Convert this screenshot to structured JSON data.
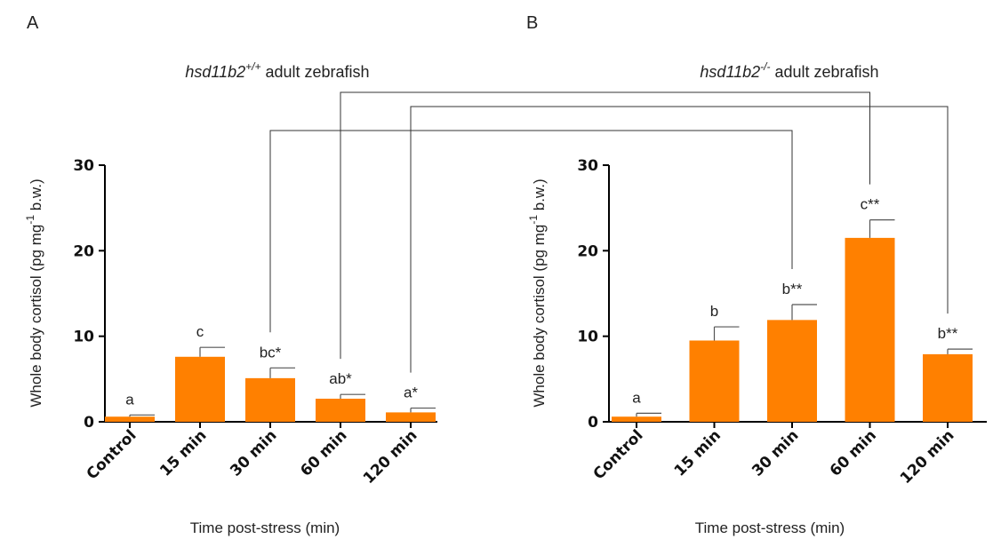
{
  "chart_data": [
    {
      "type": "bar",
      "panel_label": "A",
      "title_gene": "hsd11b2",
      "title_superscript": "+/+",
      "title_rest": " adult zebrafish",
      "xlabel": "Time post-stress (min)",
      "ylabel_part1": "Whole body cortisol (pg mg",
      "ylabel_sup": "-1",
      "ylabel_part2": " b.w.)",
      "ylim": [
        0,
        30
      ],
      "yticks": [
        0,
        10,
        20,
        30
      ],
      "categories": [
        "Control",
        "15 min",
        "30 min",
        "60 min",
        "120 min"
      ],
      "values": [
        0.6,
        7.6,
        5.1,
        2.7,
        1.1
      ],
      "errors": [
        0.2,
        1.1,
        1.2,
        0.5,
        0.5
      ],
      "significance": [
        "a",
        "c",
        "bc*",
        "ab*",
        "a*"
      ],
      "bar_color": "#ff8000"
    },
    {
      "type": "bar",
      "panel_label": "B",
      "title_gene": "hsd11b2",
      "title_superscript": "-/-",
      "title_rest": " adult zebrafish",
      "xlabel": "Time post-stress (min)",
      "ylabel_part1": "Whole body cortisol (pg mg",
      "ylabel_sup": "-1",
      "ylabel_part2": " b.w.)",
      "ylim": [
        0,
        30
      ],
      "yticks": [
        0,
        10,
        20,
        30
      ],
      "categories": [
        "Control",
        "15 min",
        "30 min",
        "60 min",
        "120 min"
      ],
      "values": [
        0.6,
        9.5,
        11.9,
        21.5,
        7.9
      ],
      "errors": [
        0.4,
        1.6,
        1.8,
        2.1,
        0.6
      ],
      "significance": [
        "a",
        "b",
        "b**",
        "c**",
        "b**"
      ],
      "bar_color": "#ff8000"
    }
  ],
  "comparisons": [
    {
      "from": "A:30 min",
      "to": "B:30 min"
    },
    {
      "from": "A:60 min",
      "to": "B:60 min"
    },
    {
      "from": "A:120 min",
      "to": "B:120 min"
    }
  ]
}
